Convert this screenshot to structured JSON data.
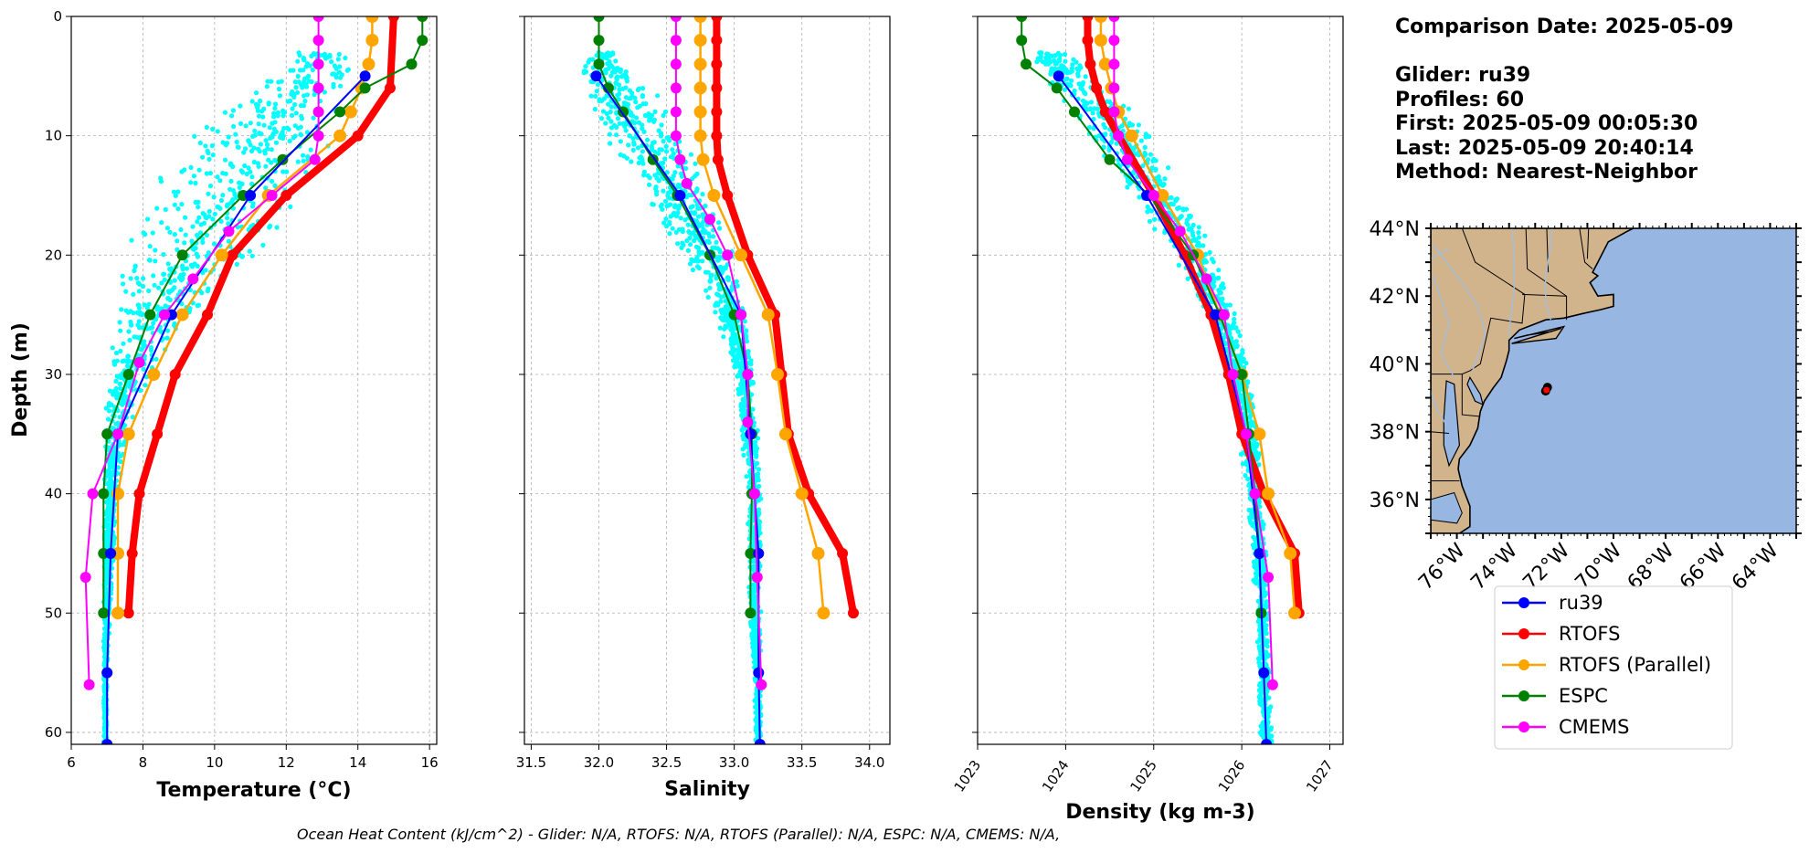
{
  "info": {
    "comparison_date": "Comparison Date: 2025-05-09",
    "glider": "Glider: ru39",
    "profiles": "Profiles: 60",
    "first": "First: 2025-05-09 00:05:30",
    "last": "Last: 2025-05-09 20:40:14",
    "method": "Method: Nearest-Neighbor"
  },
  "footer": "Ocean Heat Content (kJ/cm^2) - Glider: N/A,  RTOFS: N/A,  RTOFS (Parallel): N/A,  ESPC: N/A,  CMEMS: N/A,",
  "colors": {
    "glider_scatter": "#00ffff",
    "ru39": "#0000ff",
    "RTOFS": "#ff0000",
    "RTOFS (Parallel)": "#ffa500",
    "ESPC": "#008000",
    "CMEMS": "#ff00ff",
    "land": "#d2b48c",
    "ocean": "#97b6e1"
  },
  "legend": [
    "ru39",
    "RTOFS",
    "RTOFS (Parallel)",
    "ESPC",
    "CMEMS"
  ],
  "map": {
    "lat_labels": [
      "44°N",
      "42°N",
      "40°N",
      "38°N",
      "36°N"
    ],
    "lon_labels": [
      "76°W",
      "74°W",
      "72°W",
      "70°W",
      "68°W",
      "66°W",
      "64°W"
    ],
    "lat_values": [
      44,
      42,
      40,
      38,
      36
    ],
    "lon_values": [
      -76,
      -74,
      -72,
      -70,
      -68,
      -66,
      -64
    ],
    "extent": [
      -77,
      -63,
      35,
      44
    ],
    "glider_position": [
      -72.6,
      39.2
    ]
  },
  "chart_data": [
    {
      "type": "line",
      "xlabel": "Temperature (°C)",
      "ylabel": "Depth (m)",
      "xlim": [
        6,
        16.2
      ],
      "ylim": [
        61,
        0
      ],
      "xticks": [
        6,
        8,
        10,
        12,
        14,
        16
      ],
      "yticks": [
        0,
        10,
        20,
        30,
        40,
        50,
        60
      ],
      "grid": true,
      "scatter": {
        "name": "glider profiles",
        "envelope_depth": [
          3,
          6,
          10,
          15,
          20,
          25,
          30,
          35,
          40,
          45,
          50,
          55,
          60
        ],
        "envelope_min": [
          12.3,
          11.0,
          9.2,
          8.0,
          7.3,
          7.1,
          7.0,
          6.9,
          6.9,
          6.9,
          6.9,
          6.9,
          6.9
        ],
        "envelope_max": [
          14.1,
          13.9,
          13.4,
          12.6,
          11.5,
          9.6,
          8.2,
          7.6,
          7.3,
          7.2,
          7.1,
          7.0,
          7.0
        ]
      },
      "series": [
        {
          "name": "ru39",
          "depth": [
            5,
            15,
            25,
            35,
            45,
            55,
            61
          ],
          "values": [
            14.2,
            11.0,
            8.8,
            7.3,
            7.1,
            7.0,
            7.0
          ]
        },
        {
          "name": "RTOFS",
          "depth": [
            0,
            6,
            10,
            15,
            20,
            25,
            30,
            35,
            40,
            45,
            50
          ],
          "values": [
            15.0,
            14.9,
            14.0,
            12.0,
            10.5,
            9.8,
            8.9,
            8.4,
            7.9,
            7.7,
            7.6
          ]
        },
        {
          "name": "RTOFS (Parallel)",
          "depth": [
            0,
            2,
            4,
            6,
            8,
            10,
            15,
            20,
            25,
            30,
            35,
            40,
            45,
            50
          ],
          "values": [
            14.4,
            14.4,
            14.3,
            14.1,
            13.8,
            13.5,
            11.5,
            10.2,
            9.1,
            8.3,
            7.6,
            7.3,
            7.3,
            7.3
          ]
        },
        {
          "name": "ESPC",
          "depth": [
            0,
            2,
            4,
            6,
            8,
            12,
            15,
            20,
            25,
            30,
            35,
            40,
            45,
            50
          ],
          "values": [
            15.8,
            15.8,
            15.5,
            14.2,
            13.5,
            11.9,
            10.8,
            9.1,
            8.2,
            7.6,
            7.0,
            6.9,
            6.9,
            6.9
          ]
        },
        {
          "name": "CMEMS",
          "depth": [
            0,
            2,
            4,
            6,
            8,
            10,
            12,
            15,
            18,
            22,
            25,
            29,
            35,
            40,
            47,
            56
          ],
          "values": [
            12.9,
            12.9,
            12.9,
            12.9,
            12.9,
            12.9,
            12.8,
            11.6,
            10.4,
            9.4,
            8.6,
            7.9,
            7.3,
            6.6,
            6.4,
            6.5
          ]
        }
      ]
    },
    {
      "type": "line",
      "xlabel": "Salinity",
      "xlim": [
        31.45,
        34.15
      ],
      "ylim": [
        61,
        0
      ],
      "xticks": [
        31.5,
        32.0,
        32.5,
        33.0,
        33.5,
        34.0
      ],
      "tick_labels": [
        "31.5",
        "32.0",
        "32.5",
        "33.0",
        "33.5",
        "34.0"
      ],
      "grid": true,
      "scatter": {
        "name": "glider profiles",
        "envelope_depth": [
          3,
          6,
          10,
          15,
          20,
          25,
          30,
          35,
          40,
          45,
          50,
          55,
          60
        ],
        "envelope_min": [
          31.9,
          31.8,
          32.0,
          32.3,
          32.6,
          32.85,
          33.0,
          33.05,
          33.1,
          33.1,
          33.1,
          33.15,
          33.15
        ],
        "envelope_max": [
          32.15,
          32.4,
          32.65,
          32.85,
          33.0,
          33.1,
          33.15,
          33.18,
          33.2,
          33.2,
          33.2,
          33.2,
          33.2
        ]
      },
      "series": [
        {
          "name": "ru39",
          "depth": [
            5,
            15,
            25,
            35,
            45,
            55,
            61
          ],
          "values": [
            31.98,
            32.6,
            33.05,
            33.12,
            33.18,
            33.18,
            33.19
          ]
        },
        {
          "name": "RTOFS",
          "depth": [
            0,
            2,
            4,
            6,
            8,
            10,
            12,
            15,
            20,
            25,
            30,
            35,
            40,
            45,
            50
          ],
          "values": [
            32.87,
            32.87,
            32.87,
            32.87,
            32.87,
            32.87,
            32.88,
            32.95,
            33.1,
            33.3,
            33.35,
            33.4,
            33.55,
            33.8,
            33.88
          ]
        },
        {
          "name": "RTOFS (Parallel)",
          "depth": [
            0,
            2,
            4,
            6,
            8,
            10,
            12,
            15,
            20,
            25,
            30,
            35,
            40,
            45,
            50
          ],
          "values": [
            32.75,
            32.75,
            32.75,
            32.75,
            32.75,
            32.75,
            32.77,
            32.85,
            33.05,
            33.25,
            33.32,
            33.38,
            33.5,
            33.62,
            33.66
          ]
        },
        {
          "name": "ESPC",
          "depth": [
            0,
            2,
            4,
            6,
            8,
            12,
            15,
            20,
            25,
            30,
            35,
            40,
            45,
            50
          ],
          "values": [
            32.0,
            32.0,
            32.0,
            32.07,
            32.18,
            32.4,
            32.58,
            32.82,
            33.0,
            33.1,
            33.13,
            33.13,
            33.12,
            33.12
          ]
        },
        {
          "name": "CMEMS",
          "depth": [
            0,
            2,
            4,
            6,
            8,
            10,
            12,
            14,
            17,
            20,
            25,
            30,
            34,
            40,
            47,
            56
          ],
          "values": [
            32.57,
            32.57,
            32.57,
            32.57,
            32.57,
            32.57,
            32.6,
            32.65,
            32.82,
            32.95,
            33.05,
            33.1,
            33.1,
            33.15,
            33.17,
            33.2
          ]
        }
      ]
    },
    {
      "type": "line",
      "xlabel": "Density (kg m-3)",
      "xlim": [
        1023,
        1027.15
      ],
      "ylim": [
        61,
        0
      ],
      "xticks": [
        1023,
        1024,
        1025,
        1026,
        1027
      ],
      "grid": true,
      "scatter": {
        "name": "glider profiles",
        "envelope_depth": [
          3,
          6,
          10,
          15,
          20,
          25,
          30,
          35,
          40,
          45,
          50,
          55,
          60
        ],
        "envelope_min": [
          1023.6,
          1023.7,
          1024.2,
          1024.7,
          1025.2,
          1025.6,
          1025.85,
          1025.95,
          1026.05,
          1026.1,
          1026.15,
          1026.18,
          1026.2
        ],
        "envelope_max": [
          1024.0,
          1024.6,
          1025.0,
          1025.4,
          1025.7,
          1025.95,
          1026.1,
          1026.2,
          1026.25,
          1026.3,
          1026.32,
          1026.33,
          1026.35
        ]
      },
      "series": [
        {
          "name": "ru39",
          "depth": [
            5,
            15,
            25,
            35,
            45,
            55,
            61
          ],
          "values": [
            1023.92,
            1024.92,
            1025.7,
            1026.05,
            1026.2,
            1026.25,
            1026.28
          ]
        },
        {
          "name": "RTOFS",
          "depth": [
            0,
            2,
            4,
            6,
            8,
            10,
            15,
            20,
            25,
            30,
            35,
            40,
            45,
            50
          ],
          "values": [
            1024.25,
            1024.25,
            1024.28,
            1024.35,
            1024.45,
            1024.6,
            1025.0,
            1025.35,
            1025.65,
            1025.85,
            1026.0,
            1026.25,
            1026.6,
            1026.65
          ]
        },
        {
          "name": "RTOFS (Parallel)",
          "depth": [
            0,
            2,
            4,
            6,
            8,
            10,
            15,
            20,
            25,
            30,
            35,
            40,
            45,
            50
          ],
          "values": [
            1024.4,
            1024.4,
            1024.45,
            1024.52,
            1024.6,
            1024.75,
            1025.1,
            1025.5,
            1025.75,
            1026.0,
            1026.2,
            1026.3,
            1026.55,
            1026.6
          ]
        },
        {
          "name": "ESPC",
          "depth": [
            0,
            2,
            4,
            6,
            8,
            12,
            15,
            20,
            25,
            30,
            35,
            40,
            45,
            50
          ],
          "values": [
            1023.5,
            1023.5,
            1023.55,
            1023.9,
            1024.1,
            1024.5,
            1024.95,
            1025.45,
            1025.75,
            1026.0,
            1026.08,
            1026.15,
            1026.2,
            1026.22
          ]
        },
        {
          "name": "CMEMS",
          "depth": [
            0,
            2,
            4,
            6,
            8,
            10,
            12,
            15,
            18,
            22,
            25,
            30,
            35,
            40,
            47,
            56
          ],
          "values": [
            1024.55,
            1024.55,
            1024.55,
            1024.55,
            1024.55,
            1024.6,
            1024.7,
            1025.0,
            1025.3,
            1025.6,
            1025.8,
            1025.9,
            1026.05,
            1026.15,
            1026.3,
            1026.35
          ]
        }
      ]
    }
  ]
}
